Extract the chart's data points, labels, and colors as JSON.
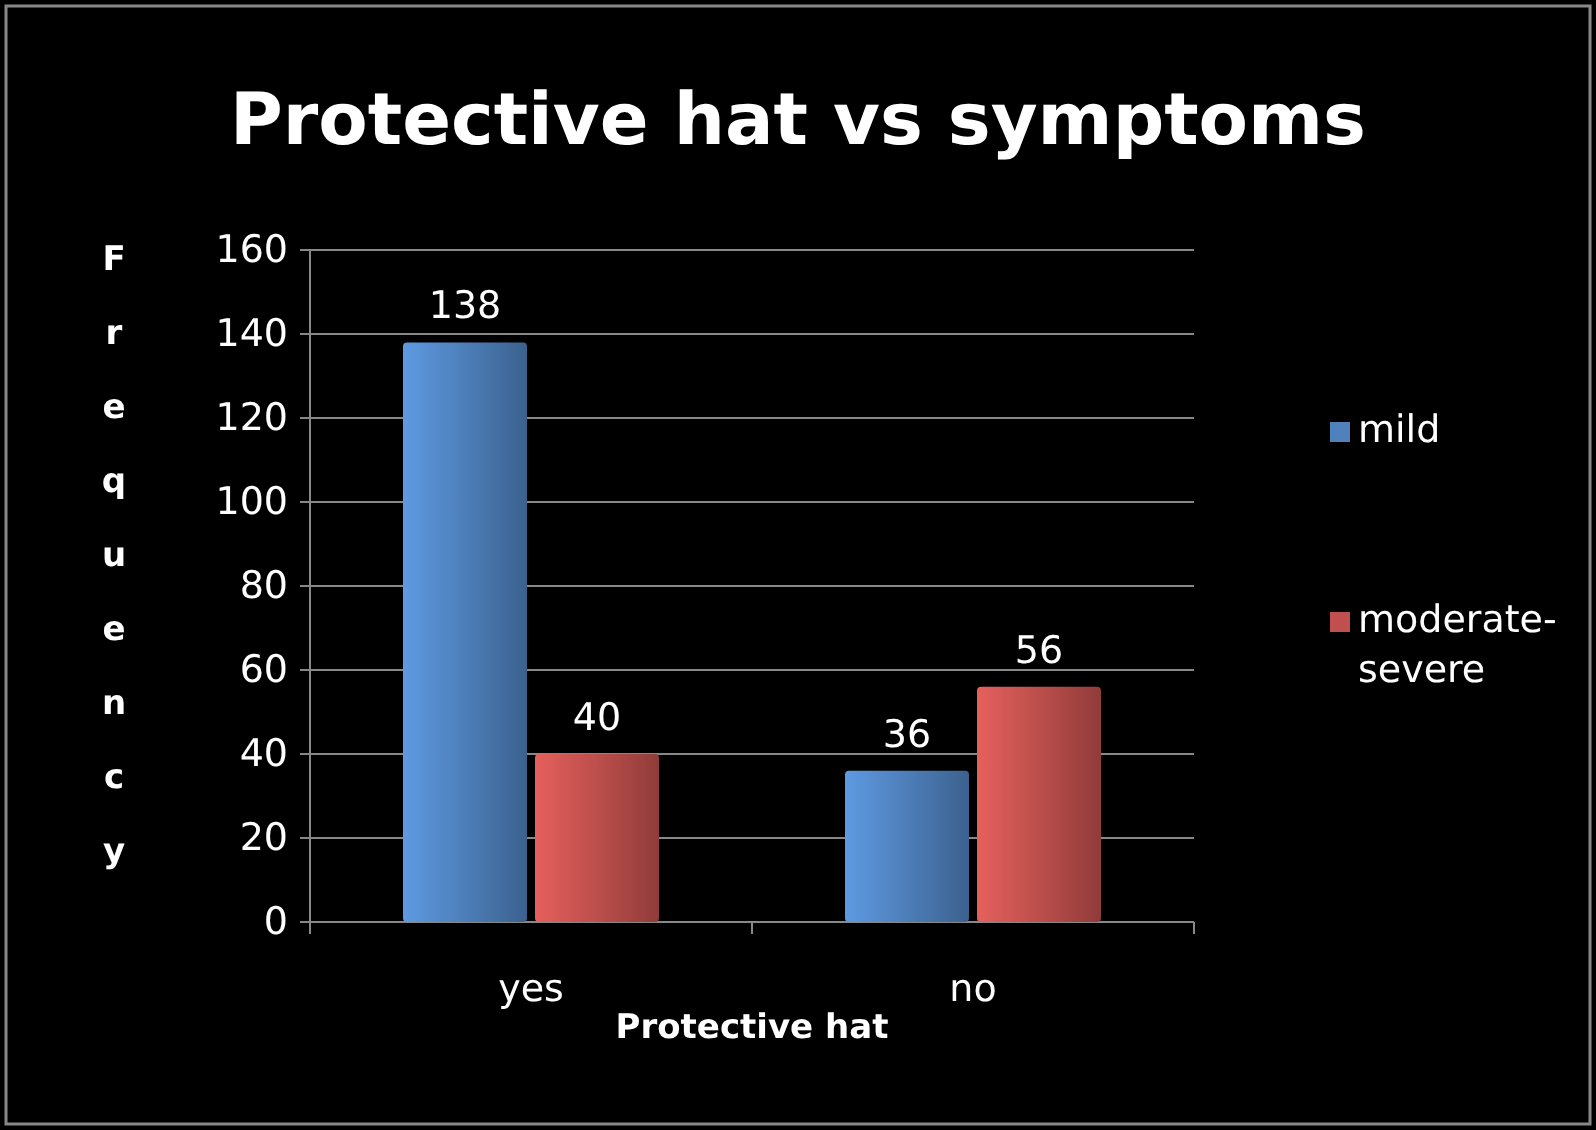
{
  "chart_data": {
    "type": "bar",
    "title": "Protective hat vs symptoms",
    "xlabel": "Protective hat",
    "ylabel": "Frequency",
    "categories": [
      "yes",
      "no"
    ],
    "series": [
      {
        "name": "mild",
        "color": "#4f81bd",
        "values": [
          138,
          36
        ]
      },
      {
        "name": "moderate-severe",
        "color": "#c0504d",
        "values": [
          40,
          56
        ]
      }
    ],
    "ylim": [
      0,
      160
    ],
    "yticks": [
      0,
      20,
      40,
      60,
      80,
      100,
      120,
      140,
      160
    ],
    "grid": "y",
    "legend": "right",
    "data_labels": true
  }
}
